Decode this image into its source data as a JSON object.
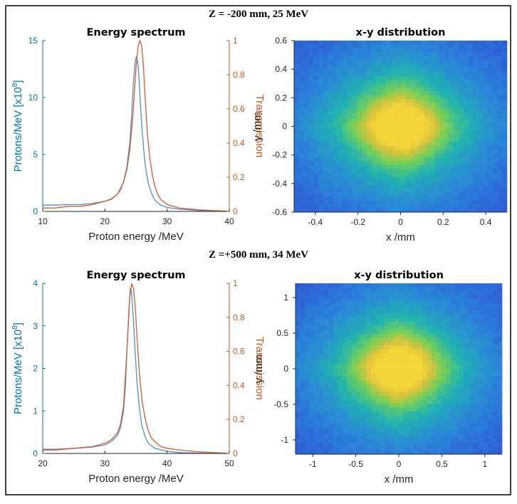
{
  "colors": {
    "spectrum": "#4d8fca",
    "transmission": "#d95a2b",
    "left_axis": "#0072BD",
    "right_axis": "#D95319",
    "axis": "#262626",
    "colormap": [
      "#3a1fa0",
      "#2f4fd6",
      "#2a86d9",
      "#21b3b0",
      "#6fcf5b",
      "#d7c43b",
      "#f5d63a"
    ]
  },
  "chart_data": [
    {
      "type": "line",
      "suptitle": "Z = -200 mm, 25 MeV",
      "title": "Energy spectrum",
      "xlabel": "Proton energy /MeV",
      "ylabel": "Protons/MeV [x10",
      "ylabel_exp": "8",
      "ylabel_end": "]",
      "ylabel_right": "Transmission",
      "xlim": [
        10,
        40
      ],
      "ylim": [
        0,
        15
      ],
      "ylim_right": [
        0,
        1
      ],
      "xticks": [
        10,
        20,
        30,
        40
      ],
      "yticks": [
        0,
        5,
        10,
        15
      ],
      "yticks_right": [
        0,
        0.2,
        0.4,
        0.6,
        0.8,
        1
      ],
      "series": [
        {
          "axis": "left",
          "x": [
            10,
            12,
            14,
            16,
            18,
            20,
            21,
            22,
            22.5,
            23,
            23.5,
            24,
            24.3,
            24.6,
            24.9,
            25.1,
            25.3,
            25.5,
            25.7,
            26.0,
            26.3,
            26.6,
            27.0,
            27.5,
            28,
            29,
            30,
            32,
            35,
            40
          ],
          "y": [
            0.55,
            0.55,
            0.6,
            0.6,
            0.7,
            0.9,
            1.1,
            1.5,
            1.9,
            2.6,
            3.8,
            6.0,
            8.5,
            11.5,
            13.3,
            13.6,
            13.0,
            11.5,
            9.5,
            7.0,
            5.0,
            3.6,
            2.4,
            1.6,
            1.0,
            0.55,
            0.35,
            0.2,
            0.08,
            0.02
          ]
        },
        {
          "axis": "right",
          "x": [
            10,
            12,
            14,
            16,
            18,
            20,
            21,
            22,
            23,
            23.5,
            24,
            24.5,
            25,
            25.3,
            25.6,
            25.9,
            26.2,
            26.5,
            26.8,
            27.2,
            27.6,
            28,
            28.5,
            29,
            30,
            32,
            35,
            40
          ],
          "y": [
            0.02,
            0.02,
            0.03,
            0.03,
            0.04,
            0.06,
            0.07,
            0.1,
            0.17,
            0.24,
            0.36,
            0.56,
            0.84,
            0.96,
            1.0,
            0.97,
            0.84,
            0.65,
            0.47,
            0.32,
            0.22,
            0.15,
            0.1,
            0.07,
            0.04,
            0.02,
            0.01,
            0.0
          ]
        }
      ]
    },
    {
      "type": "heatmap",
      "title": "x-y distribution",
      "xlabel": "x /mm",
      "ylabel": "y /mm",
      "xlim": [
        -0.5,
        0.5
      ],
      "ylim": [
        -0.6,
        0.6
      ],
      "xticks": [
        -0.4,
        -0.2,
        0,
        0.2,
        0.4
      ],
      "yticks": [
        -0.6,
        -0.4,
        -0.2,
        0,
        0.2,
        0.4,
        0.6
      ]
    },
    {
      "type": "line",
      "suptitle": "Z =+500 mm, 34 MeV",
      "title": "Energy spectrum",
      "xlabel": "Proton energy /MeV",
      "ylabel": "Protons/MeV [x10",
      "ylabel_exp": "8",
      "ylabel_end": "]",
      "ylabel_right": "Transmission",
      "xlim": [
        20,
        50
      ],
      "ylim": [
        0,
        4
      ],
      "ylim_right": [
        0,
        1
      ],
      "xticks": [
        20,
        30,
        40,
        50
      ],
      "yticks": [
        0,
        1,
        2,
        3,
        4
      ],
      "yticks_right": [
        0,
        0.2,
        0.4,
        0.6,
        0.8,
        1
      ],
      "series": [
        {
          "axis": "left",
          "x": [
            20,
            22,
            25,
            28,
            30,
            31,
            32,
            32.5,
            33,
            33.3,
            33.6,
            33.9,
            34.1,
            34.3,
            34.6,
            34.9,
            35.2,
            35.6,
            36,
            36.5,
            37,
            38,
            40,
            42,
            45,
            50
          ],
          "y": [
            0.1,
            0.1,
            0.12,
            0.15,
            0.2,
            0.28,
            0.42,
            0.6,
            1.0,
            1.6,
            2.6,
            3.5,
            3.9,
            3.75,
            3.1,
            2.3,
            1.6,
            1.0,
            0.62,
            0.38,
            0.24,
            0.12,
            0.05,
            0.02,
            0.01,
            0.0
          ]
        },
        {
          "axis": "right",
          "x": [
            20,
            22,
            25,
            28,
            30,
            31,
            32,
            32.5,
            33,
            33.5,
            34,
            34.3,
            34.6,
            34.9,
            35.2,
            35.6,
            36,
            36.5,
            37,
            37.5,
            38,
            39,
            40,
            42,
            45,
            50
          ],
          "y": [
            0.02,
            0.02,
            0.03,
            0.04,
            0.06,
            0.08,
            0.12,
            0.17,
            0.28,
            0.58,
            0.92,
            1.0,
            0.97,
            0.85,
            0.66,
            0.45,
            0.3,
            0.2,
            0.13,
            0.09,
            0.07,
            0.04,
            0.03,
            0.02,
            0.01,
            0.0
          ]
        }
      ]
    },
    {
      "type": "heatmap",
      "title": "x-y distribution",
      "xlabel": "x /mm",
      "ylabel": "y /mm",
      "xlim": [
        -1.2,
        1.2
      ],
      "ylim": [
        -1.2,
        1.2
      ],
      "xticks": [
        -1,
        -0.5,
        0,
        0.5,
        1
      ],
      "yticks": [
        -1,
        -0.5,
        0,
        0.5,
        1
      ]
    }
  ]
}
